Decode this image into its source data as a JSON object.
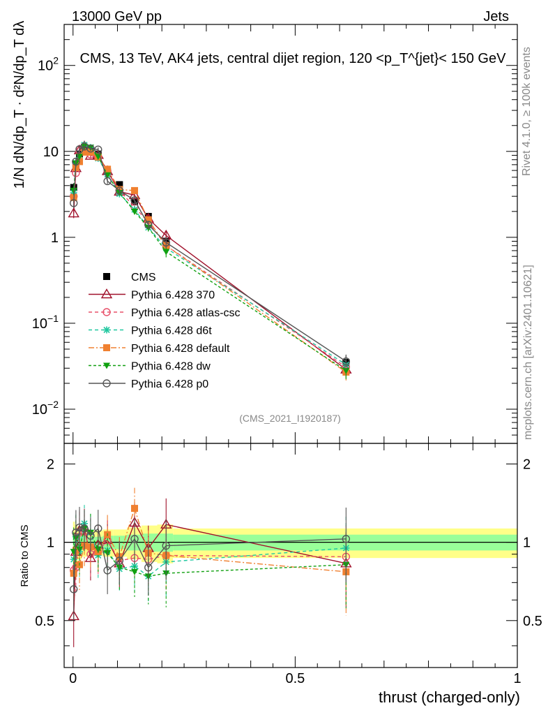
{
  "header": {
    "left": "13000 GeV pp",
    "right": "Jets"
  },
  "side_labels": {
    "rivet": "Rivet 4.1.0, ≥ 100k events",
    "mcplots": "mcplots.cern.ch [arXiv:2401.10621]"
  },
  "watermark": "(CMS_2021_I1920187)",
  "colors": {
    "cms": "#000000",
    "p370": "#a0102a",
    "atlas": "#e8506a",
    "d6t": "#20c8a0",
    "default": "#f08030",
    "dw": "#10a010",
    "p0": "#555555",
    "band_inner": "#99ff99",
    "band_outer": "#ffff88"
  },
  "chart_data": [
    {
      "type": "line",
      "panel": "main",
      "title": "CMS, 13 TeV, AK4 jets, central dijet region, 120 <p_T^{jet}< 150 GeV",
      "ylabel": "1/N dN/dp_T · d²N/dp_T dλ",
      "yscale": "log",
      "ylim": [
        0.004,
        300
      ],
      "xlim": [
        -0.02,
        1.0
      ],
      "yticks": [
        {
          "v": 0.01,
          "b": "10",
          "e": "−2"
        },
        {
          "v": 0.1,
          "b": "10",
          "e": "−1"
        },
        {
          "v": 1,
          "b": "1",
          "e": ""
        },
        {
          "v": 10,
          "b": "10",
          "e": ""
        },
        {
          "v": 100,
          "b": "10",
          "e": "2"
        }
      ],
      "x": [
        0.0015,
        0.0065,
        0.0145,
        0.0255,
        0.0395,
        0.0565,
        0.0775,
        0.1045,
        0.1385,
        0.1695,
        0.2095,
        0.6145
      ],
      "cms_errors": [
        0.12,
        0.1,
        0.08,
        0.06,
        0.06,
        0.06,
        0.07,
        0.07,
        0.08,
        0.1,
        0.14,
        0.2
      ],
      "legend": [
        "CMS",
        "Pythia 6.428 370",
        "Pythia 6.428 atlas-csc",
        "Pythia 6.428 d6t",
        "Pythia 6.428 default",
        "Pythia 6.428 dw",
        "Pythia 6.428 p0"
      ],
      "series": [
        {
          "name": "CMS",
          "values": [
            3.8,
            7.0,
            9.3,
            10.1,
            10.2,
            9.3,
            5.8,
            4.1,
            2.6,
            1.75,
            0.9,
            0.035
          ]
        },
        {
          "name": "Pythia 6.428 370",
          "values": [
            1.9,
            6.4,
            10.3,
            11.5,
            8.9,
            9.1,
            5.9,
            3.4,
            3.1,
            1.65,
            1.05,
            0.029
          ]
        },
        {
          "name": "Pythia 6.428 atlas-csc",
          "values": [
            3.0,
            5.6,
            10.1,
            11.1,
            9.2,
            8.6,
            5.9,
            3.5,
            2.25,
            1.5,
            0.8,
            0.031
          ]
        },
        {
          "name": "Pythia 6.428 d6t",
          "values": [
            3.3,
            7.3,
            8.5,
            11.9,
            11.1,
            8.3,
            5.4,
            3.2,
            2.1,
            1.3,
            0.75,
            0.033
          ]
        },
        {
          "name": "Pythia 6.428 default",
          "values": [
            2.9,
            6.5,
            7.6,
            9.8,
            9.8,
            8.6,
            6.2,
            3.6,
            3.5,
            1.6,
            0.8,
            0.027
          ]
        },
        {
          "name": "Pythia 6.428 dw",
          "values": [
            3.5,
            7.3,
            8.7,
            11.4,
            11.1,
            8.7,
            5.3,
            3.3,
            2.0,
            1.3,
            0.68,
            0.028
          ]
        },
        {
          "name": "Pythia 6.428 p0",
          "values": [
            2.5,
            7.6,
            10.6,
            11.4,
            10.8,
            10.5,
            4.5,
            3.5,
            2.7,
            1.4,
            0.87,
            0.036
          ]
        }
      ]
    },
    {
      "type": "line",
      "panel": "ratio",
      "ylabel": "Ratio to CMS",
      "xlabel": "thrust (charged-only)",
      "ylim": [
        0.33,
        2.4
      ],
      "xlim": [
        -0.02,
        1.0
      ],
      "xticks": [
        "0",
        "0.5",
        "1"
      ],
      "yticks": [
        "0.5",
        "1",
        "2"
      ],
      "band_inner": [
        0.09,
        0.08,
        0.07,
        0.06,
        0.05,
        0.05,
        0.06,
        0.06,
        0.07,
        0.08,
        0.08,
        0.07
      ],
      "band_outer": [
        0.2,
        0.17,
        0.14,
        0.12,
        0.11,
        0.11,
        0.12,
        0.12,
        0.14,
        0.16,
        0.17,
        0.13
      ],
      "series": [
        {
          "name": "Pythia 6.428 370",
          "values": [
            0.52,
            0.92,
            1.11,
            1.14,
            0.87,
            0.98,
            1.02,
            0.83,
            1.19,
            0.95,
            1.17,
            0.83
          ]
        },
        {
          "name": "Pythia 6.428 atlas-csc",
          "values": [
            0.78,
            0.8,
            1.09,
            1.1,
            0.9,
            0.92,
            1.02,
            0.85,
            0.87,
            0.86,
            0.89,
            0.88
          ]
        },
        {
          "name": "Pythia 6.428 d6t",
          "values": [
            0.86,
            1.05,
            0.92,
            1.18,
            1.09,
            0.89,
            0.93,
            0.79,
            0.81,
            0.74,
            0.84,
            0.95
          ]
        },
        {
          "name": "Pythia 6.428 default",
          "values": [
            0.76,
            0.93,
            0.82,
            0.97,
            0.96,
            0.92,
            1.07,
            0.88,
            1.35,
            0.91,
            0.89,
            0.77
          ]
        },
        {
          "name": "Pythia 6.428 dw",
          "values": [
            0.92,
            1.04,
            0.94,
            1.13,
            1.09,
            0.94,
            0.91,
            0.8,
            0.77,
            0.74,
            0.76,
            0.82
          ]
        },
        {
          "name": "Pythia 6.428 p0",
          "values": [
            0.66,
            1.09,
            1.14,
            1.13,
            1.06,
            1.13,
            0.78,
            0.85,
            1.03,
            0.8,
            0.97,
            1.03
          ]
        }
      ]
    }
  ]
}
